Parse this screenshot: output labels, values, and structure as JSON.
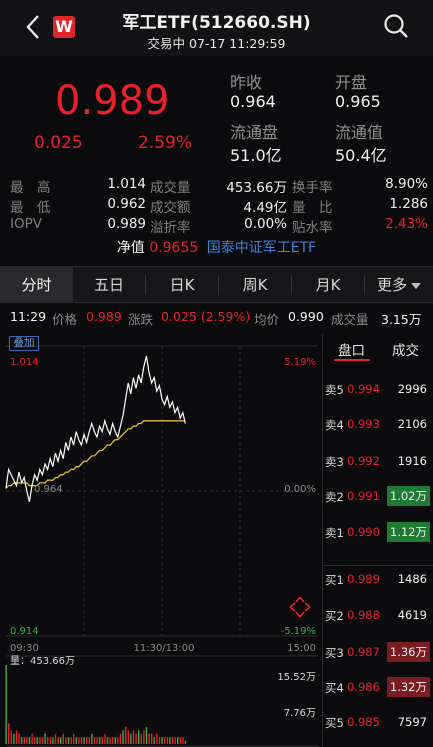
{
  "header": {
    "logo_text": "W",
    "title": "军工ETF(512660.SH)",
    "subtitle": "交易中 07-17 11:29:59",
    "icons": [
      "chevron-left-icon",
      "search-icon"
    ]
  },
  "quote": {
    "price": "0.989",
    "change": "0.025",
    "change_pct": "2.59%",
    "prev_close_label": "昨收",
    "prev_close": "0.964",
    "open_label": "开盘",
    "open": "0.965",
    "float_shares_label": "流通盘",
    "float_shares": "51.0亿",
    "float_value_label": "流通值",
    "float_value": "50.4亿"
  },
  "stats": [
    [
      {
        "label": "最　高",
        "value": "1.014"
      },
      {
        "label": "成交量",
        "value": "453.66万"
      },
      {
        "label": "换手率",
        "value": "8.90%"
      }
    ],
    [
      {
        "label": "最　低",
        "value": "0.962"
      },
      {
        "label": "成交额",
        "value": "4.49亿"
      },
      {
        "label": "量　比",
        "value": "1.286"
      }
    ],
    [
      {
        "label": "IOPV",
        "value": "0.989"
      },
      {
        "label": "溢折率",
        "value": "0.00%"
      },
      {
        "label": "贴水率",
        "value": "2.43%"
      }
    ]
  ],
  "nav": {
    "label": "净值",
    "value": "0.9655",
    "fund_name": "国泰中证军工ETF"
  },
  "tabs": [
    "分时",
    "五日",
    "日K",
    "周K",
    "月K",
    "更多"
  ],
  "active_tab": 0,
  "info_line": {
    "time": "11:29",
    "price_label": "价格",
    "price": "0.989",
    "change_label": "涨跌",
    "change": "0.025 (2.59%)",
    "avg_label": "均价",
    "avg": "0.990",
    "volume_label": "成交量",
    "volume": "3.15万"
  },
  "chart": {
    "badge": "叠加",
    "y_high": "1.014",
    "y_mid": "0.964",
    "y_low": "0.914",
    "pct_high": "5.19%",
    "pct_mid": "0.00%",
    "pct_low": "-5.19%",
    "time_start": "09:30",
    "time_mid": "11:30/13:00",
    "time_end": "15:00",
    "volume_label": "量：453.66万",
    "vol_tick_1": "15.52万",
    "vol_tick_2": "7.76万",
    "colors": {
      "price_line": "#ffffff",
      "avg_line": "#e6b532",
      "volume_up": "#e8212b"
    }
  },
  "chart_data": {
    "type": "line",
    "xlabel": "",
    "ylabel": "",
    "ylim": [
      0.914,
      1.014
    ],
    "x_range": [
      "09:30",
      "11:30"
    ],
    "series": [
      {
        "values": [
          0.965,
          0.972,
          0.97,
          0.968,
          0.966,
          0.971,
          0.967,
          0.969,
          0.964,
          0.96,
          0.966,
          0.97,
          0.968,
          0.972,
          0.97,
          0.974,
          0.972,
          0.976,
          0.973,
          0.978,
          0.975,
          0.979,
          0.976,
          0.982,
          0.979,
          0.984,
          0.981,
          0.986,
          0.983,
          0.981,
          0.985,
          0.982,
          0.986,
          0.989,
          0.986,
          0.984,
          0.988,
          0.986,
          0.99,
          0.987,
          0.985,
          0.989,
          0.986,
          0.984,
          0.988,
          0.992,
          0.998,
          1.004,
          1.0,
          1.006,
          1.002,
          1.007,
          1.004,
          1.01,
          1.014,
          1.008,
          1.004,
          1.006,
          1.001,
          1.003,
          0.998,
          0.996,
          0.999,
          0.995,
          0.997,
          0.993,
          0.995,
          0.991,
          0.993,
          0.989
        ]
      },
      {
        "values": [
          0.965,
          0.966,
          0.966,
          0.967,
          0.967,
          0.967,
          0.967,
          0.967,
          0.967,
          0.966,
          0.966,
          0.966,
          0.966,
          0.967,
          0.967,
          0.967,
          0.968,
          0.968,
          0.968,
          0.969,
          0.969,
          0.97,
          0.97,
          0.971,
          0.971,
          0.972,
          0.972,
          0.973,
          0.973,
          0.974,
          0.975,
          0.975,
          0.976,
          0.977,
          0.977,
          0.978,
          0.979,
          0.979,
          0.98,
          0.981,
          0.981,
          0.982,
          0.983,
          0.983,
          0.984,
          0.985,
          0.986,
          0.987,
          0.987,
          0.988,
          0.988,
          0.989,
          0.989,
          0.99,
          0.99,
          0.99,
          0.99,
          0.99,
          0.99,
          0.99,
          0.99,
          0.99,
          0.99,
          0.99,
          0.99,
          0.99,
          0.99,
          0.99,
          0.99,
          0.99
        ]
      }
    ],
    "volume_ylim": [
      0,
      23.28
    ],
    "volume": [
      23,
      6,
      4,
      3,
      4,
      3,
      2,
      2,
      2,
      2,
      3,
      2,
      2,
      2,
      2,
      3,
      2,
      2,
      2,
      3,
      2,
      2,
      3,
      2,
      2,
      2,
      3,
      2,
      2,
      2,
      2,
      2,
      2,
      3,
      2,
      2,
      2,
      2,
      3,
      2,
      2,
      2,
      2,
      2,
      3,
      4,
      5,
      4,
      3,
      4,
      3,
      4,
      3,
      4,
      5,
      3,
      3,
      2,
      3,
      2,
      2,
      2,
      2,
      2,
      2,
      2,
      2,
      2,
      2,
      1
    ]
  },
  "order_book": {
    "tabs": [
      "盘口",
      "成交"
    ],
    "active_tab": 0,
    "asks": [
      {
        "side": "卖5",
        "price": "0.994",
        "volume": "2996"
      },
      {
        "side": "卖4",
        "price": "0.993",
        "volume": "2106"
      },
      {
        "side": "卖3",
        "price": "0.992",
        "volume": "1916"
      },
      {
        "side": "卖2",
        "price": "0.991",
        "volume": "1.02万"
      },
      {
        "side": "卖1",
        "price": "0.990",
        "volume": "1.12万"
      }
    ],
    "bids": [
      {
        "side": "买1",
        "price": "0.989",
        "volume": "1486"
      },
      {
        "side": "买2",
        "price": "0.988",
        "volume": "4619"
      },
      {
        "side": "买3",
        "price": "0.987",
        "volume": "1.36万"
      },
      {
        "side": "买4",
        "price": "0.986",
        "volume": "1.32万"
      },
      {
        "side": "买5",
        "price": "0.985",
        "volume": "7597"
      }
    ]
  }
}
